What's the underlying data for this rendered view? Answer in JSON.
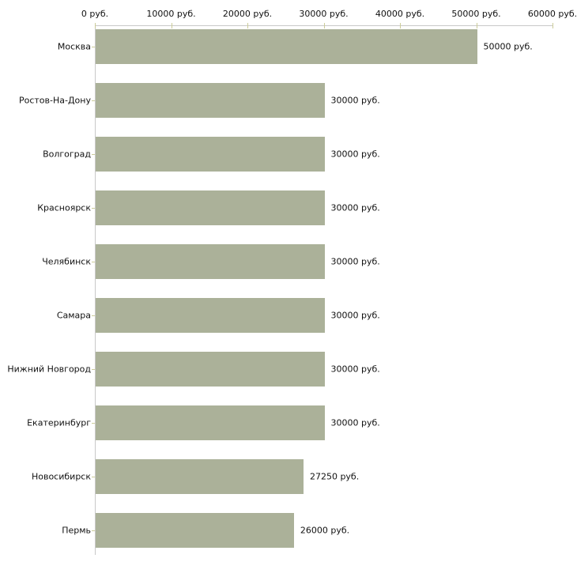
{
  "chart_data": {
    "type": "bar",
    "orientation": "horizontal",
    "title": "",
    "xlabel": "",
    "ylabel": "",
    "xlim": [
      0,
      60000
    ],
    "grid": false,
    "legend": null,
    "categories": [
      "Москва",
      "Ростов-На-Дону",
      "Волгоград",
      "Красноярск",
      "Челябинск",
      "Самара",
      "Нижний Новгород",
      "Екатеринбург",
      "Новосибирск",
      "Пермь"
    ],
    "values": [
      50000,
      30000,
      30000,
      30000,
      30000,
      30000,
      30000,
      30000,
      27250,
      26000
    ],
    "value_labels": [
      "50000 руб.",
      "30000 руб.",
      "30000 руб.",
      "30000 руб.",
      "30000 руб.",
      "30000 руб.",
      "30000 руб.",
      "30000 руб.",
      "27250 руб.",
      "26000 руб."
    ],
    "x_ticks": [
      0,
      10000,
      20000,
      30000,
      40000,
      50000,
      60000
    ],
    "x_tick_labels": [
      "0 руб.",
      "10000 руб.",
      "20000 руб.",
      "30000 руб.",
      "40000 руб.",
      "50000 руб.",
      "60000 руб."
    ],
    "colors": {
      "bar": "#abb199",
      "axis": "#c8c8c8",
      "tick": "#cccc99",
      "text": "#111111",
      "background": "#ffffff"
    }
  }
}
